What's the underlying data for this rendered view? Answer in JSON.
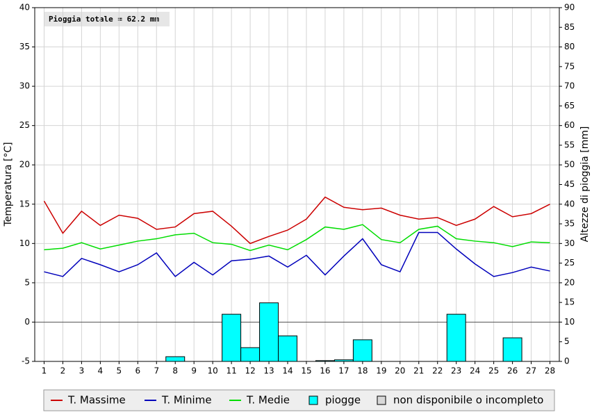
{
  "chart_data": {
    "type": "combo",
    "annotation": "Pioggia totale = 62.2 mm",
    "ylabel": "Temperatura [°C]",
    "y2label": "Altezze di pioggia [mm]",
    "x": [
      1,
      2,
      3,
      4,
      5,
      6,
      7,
      8,
      9,
      10,
      11,
      12,
      13,
      14,
      15,
      16,
      17,
      18,
      19,
      20,
      21,
      22,
      23,
      24,
      25,
      26,
      27,
      28
    ],
    "xlim": [
      0.5,
      28.5
    ],
    "ylim": [
      -5,
      40
    ],
    "yticks": [
      -5,
      0,
      5,
      10,
      15,
      20,
      25,
      30,
      35,
      40
    ],
    "y2lim": [
      0,
      90
    ],
    "y2ticks": [
      0,
      5,
      10,
      15,
      20,
      25,
      30,
      35,
      40,
      45,
      50,
      55,
      60,
      65,
      70,
      75,
      80,
      85,
      90
    ],
    "grid": true,
    "series": [
      {
        "name": "T. Massime",
        "type": "line",
        "color": "#cc0000",
        "values": [
          15.4,
          11.3,
          14.1,
          12.3,
          13.6,
          13.2,
          11.8,
          12.1,
          13.8,
          14.1,
          12.2,
          10.0,
          10.9,
          11.7,
          13.1,
          15.9,
          14.6,
          14.3,
          14.5,
          13.6,
          13.1,
          13.3,
          12.3,
          13.1,
          14.7,
          13.4,
          13.8,
          15.0
        ]
      },
      {
        "name": "T. Minime",
        "type": "line",
        "color": "#0000bb",
        "values": [
          6.4,
          5.8,
          8.1,
          7.3,
          6.4,
          7.3,
          8.8,
          5.8,
          7.6,
          6.0,
          7.8,
          8.0,
          8.4,
          7.0,
          8.5,
          6.0,
          8.4,
          10.6,
          7.3,
          6.4,
          11.4,
          11.4,
          9.3,
          7.4,
          5.8,
          6.3,
          7.0,
          6.5
        ]
      },
      {
        "name": "T. Medie",
        "type": "line",
        "color": "#00dd00",
        "values": [
          9.2,
          9.4,
          10.1,
          9.3,
          9.8,
          10.3,
          10.6,
          11.1,
          11.3,
          10.1,
          9.9,
          9.1,
          9.8,
          9.2,
          10.5,
          12.1,
          11.8,
          12.4,
          10.5,
          10.1,
          11.8,
          12.2,
          10.6,
          10.3,
          10.1,
          9.6,
          10.2,
          10.1
        ]
      },
      {
        "name": "piogge",
        "type": "bar",
        "axis": "y2",
        "color": "#00ffff",
        "values": [
          0,
          0,
          0,
          0,
          0,
          0,
          0,
          1.2,
          0,
          0,
          12.0,
          3.5,
          14.9,
          6.5,
          0,
          0.2,
          0.4,
          5.5,
          0,
          0,
          0,
          0,
          12.0,
          0,
          0,
          6.0,
          0,
          0
        ]
      }
    ],
    "legend_extra": {
      "name": "non disponibile o incompleto",
      "color": "#d8d8d8"
    }
  }
}
